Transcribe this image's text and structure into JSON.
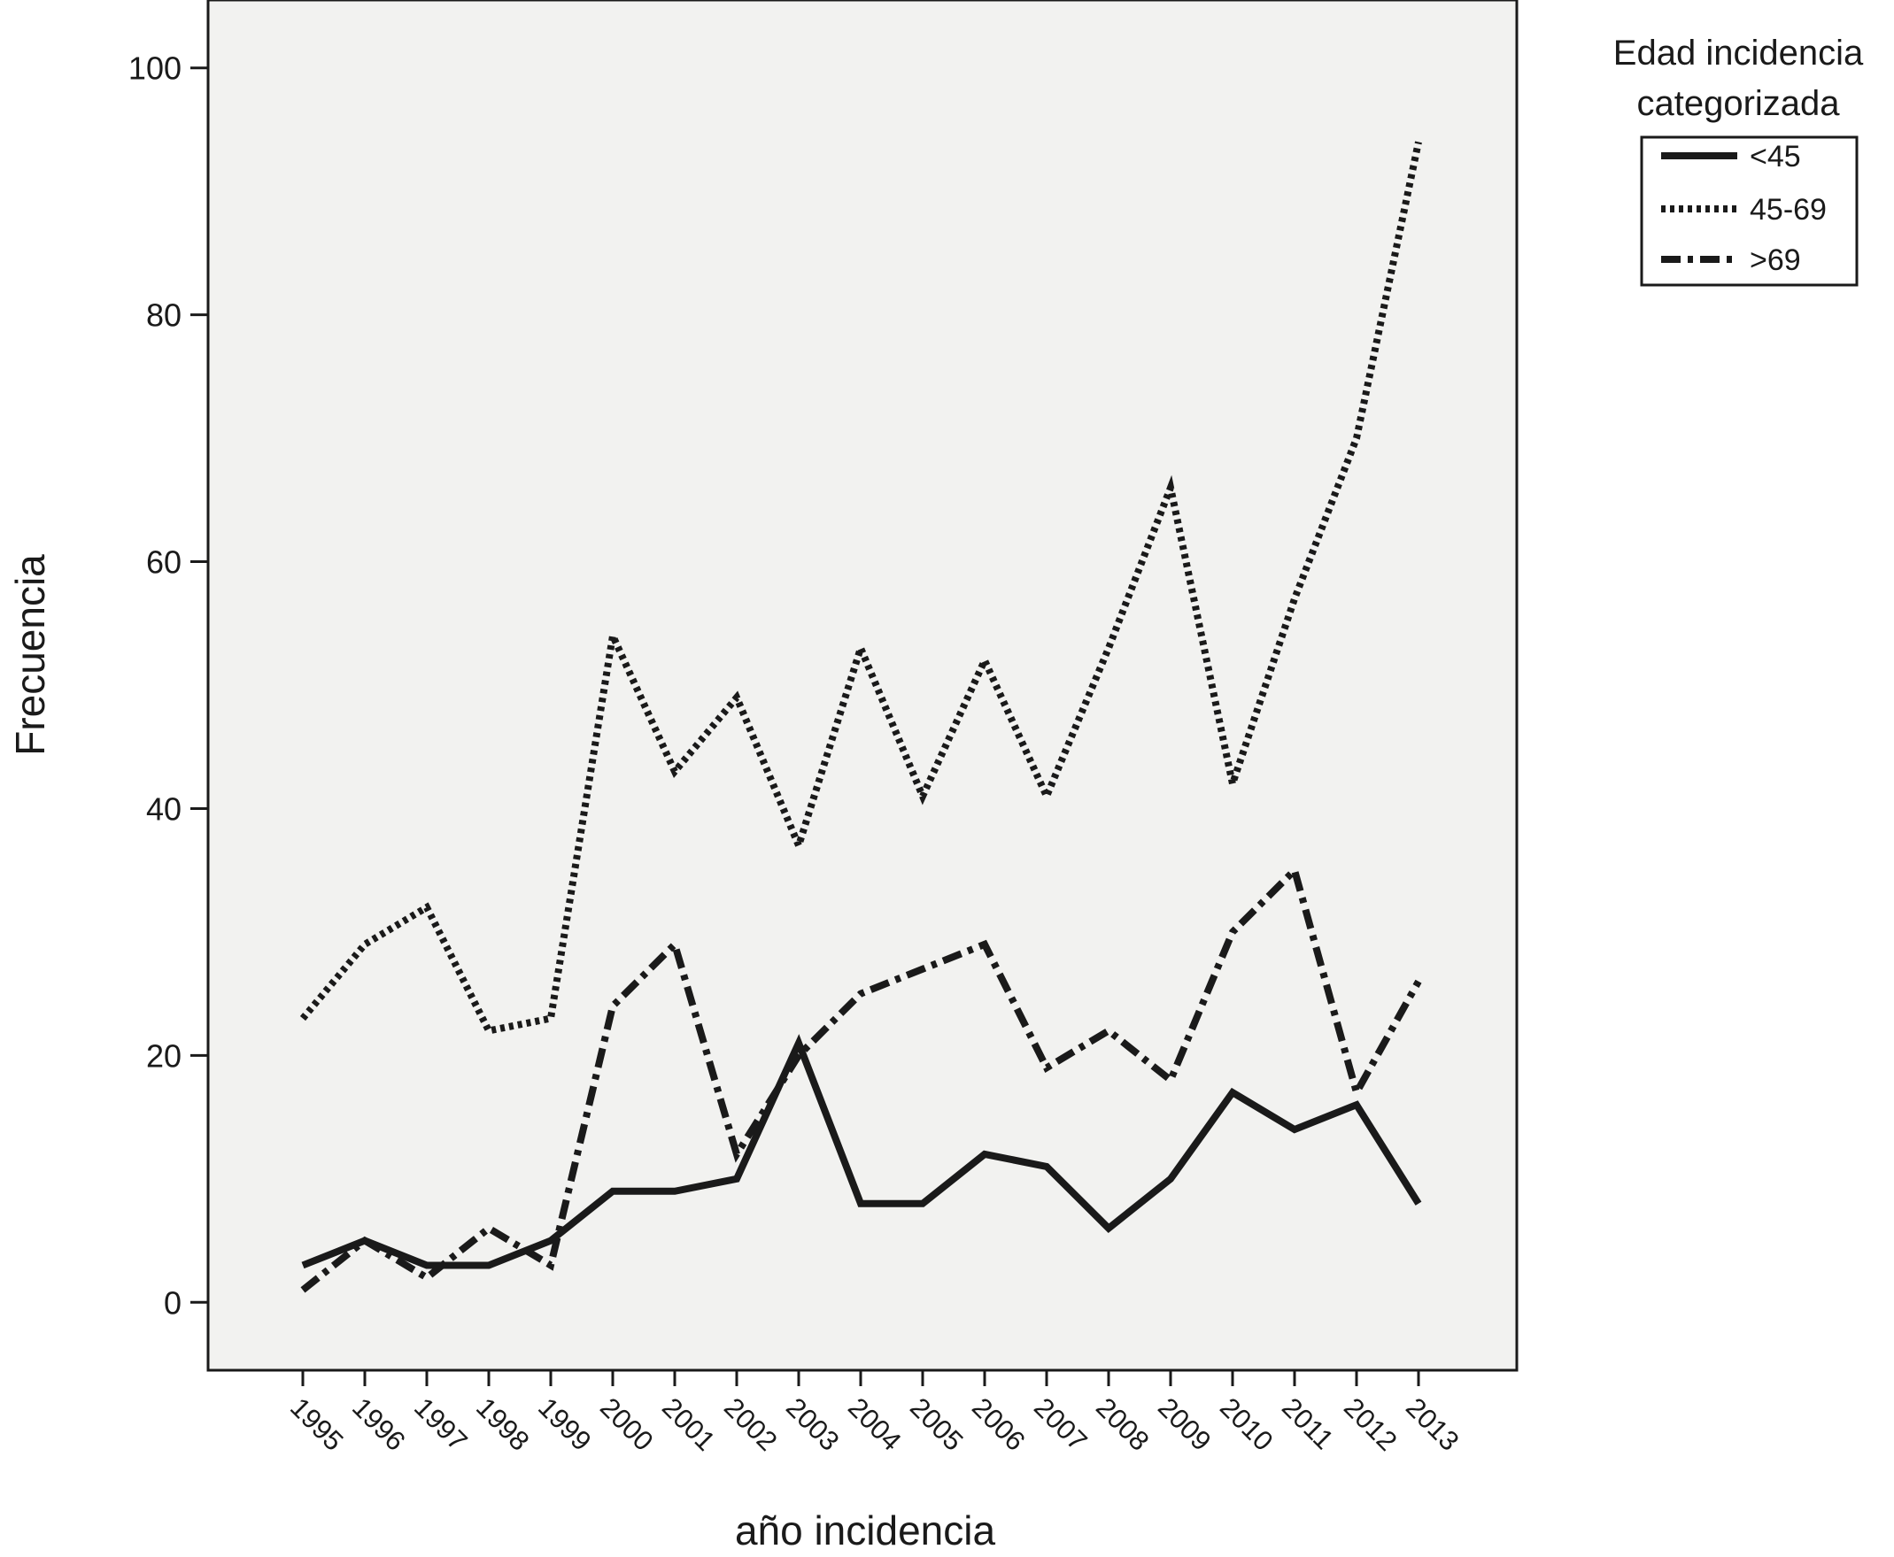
{
  "chart_data": {
    "type": "line",
    "title": "",
    "xlabel": "año incidencia",
    "ylabel": "Frecuencia",
    "categories": [
      "1995",
      "1996",
      "1997",
      "1998",
      "1999",
      "2000",
      "2001",
      "2002",
      "2003",
      "2004",
      "2005",
      "2006",
      "2007",
      "2008",
      "2009",
      "2010",
      "2011",
      "2012",
      "2013"
    ],
    "y_ticks": [
      0,
      20,
      40,
      60,
      80,
      100
    ],
    "ylim": [
      -5.5,
      105.5
    ],
    "grid": false,
    "legend": {
      "title_lines": [
        "Edad incidencia",
        "categorizada"
      ],
      "placement": "right"
    },
    "series": [
      {
        "name": "<45",
        "style": "solid",
        "color": "#1a1a1a",
        "values": [
          3,
          5,
          3,
          3,
          5,
          9,
          9,
          10,
          21,
          8,
          8,
          12,
          11,
          6,
          10,
          17,
          14,
          16,
          8
        ]
      },
      {
        "name": "45-69",
        "style": "dotted",
        "color": "#1a1a1a",
        "values": [
          23,
          29,
          32,
          22,
          23,
          54,
          43,
          49,
          37,
          53,
          41,
          52,
          41,
          53,
          66,
          42,
          57,
          70,
          94
        ]
      },
      {
        "name": ">69",
        "style": "dashdot",
        "color": "#1a1a1a",
        "values": [
          1,
          5,
          2,
          6,
          3,
          24,
          29,
          12,
          20,
          25,
          27,
          29,
          19,
          22,
          18,
          30,
          35,
          17,
          26
        ]
      }
    ],
    "plot_background": "#f2f2f0"
  }
}
